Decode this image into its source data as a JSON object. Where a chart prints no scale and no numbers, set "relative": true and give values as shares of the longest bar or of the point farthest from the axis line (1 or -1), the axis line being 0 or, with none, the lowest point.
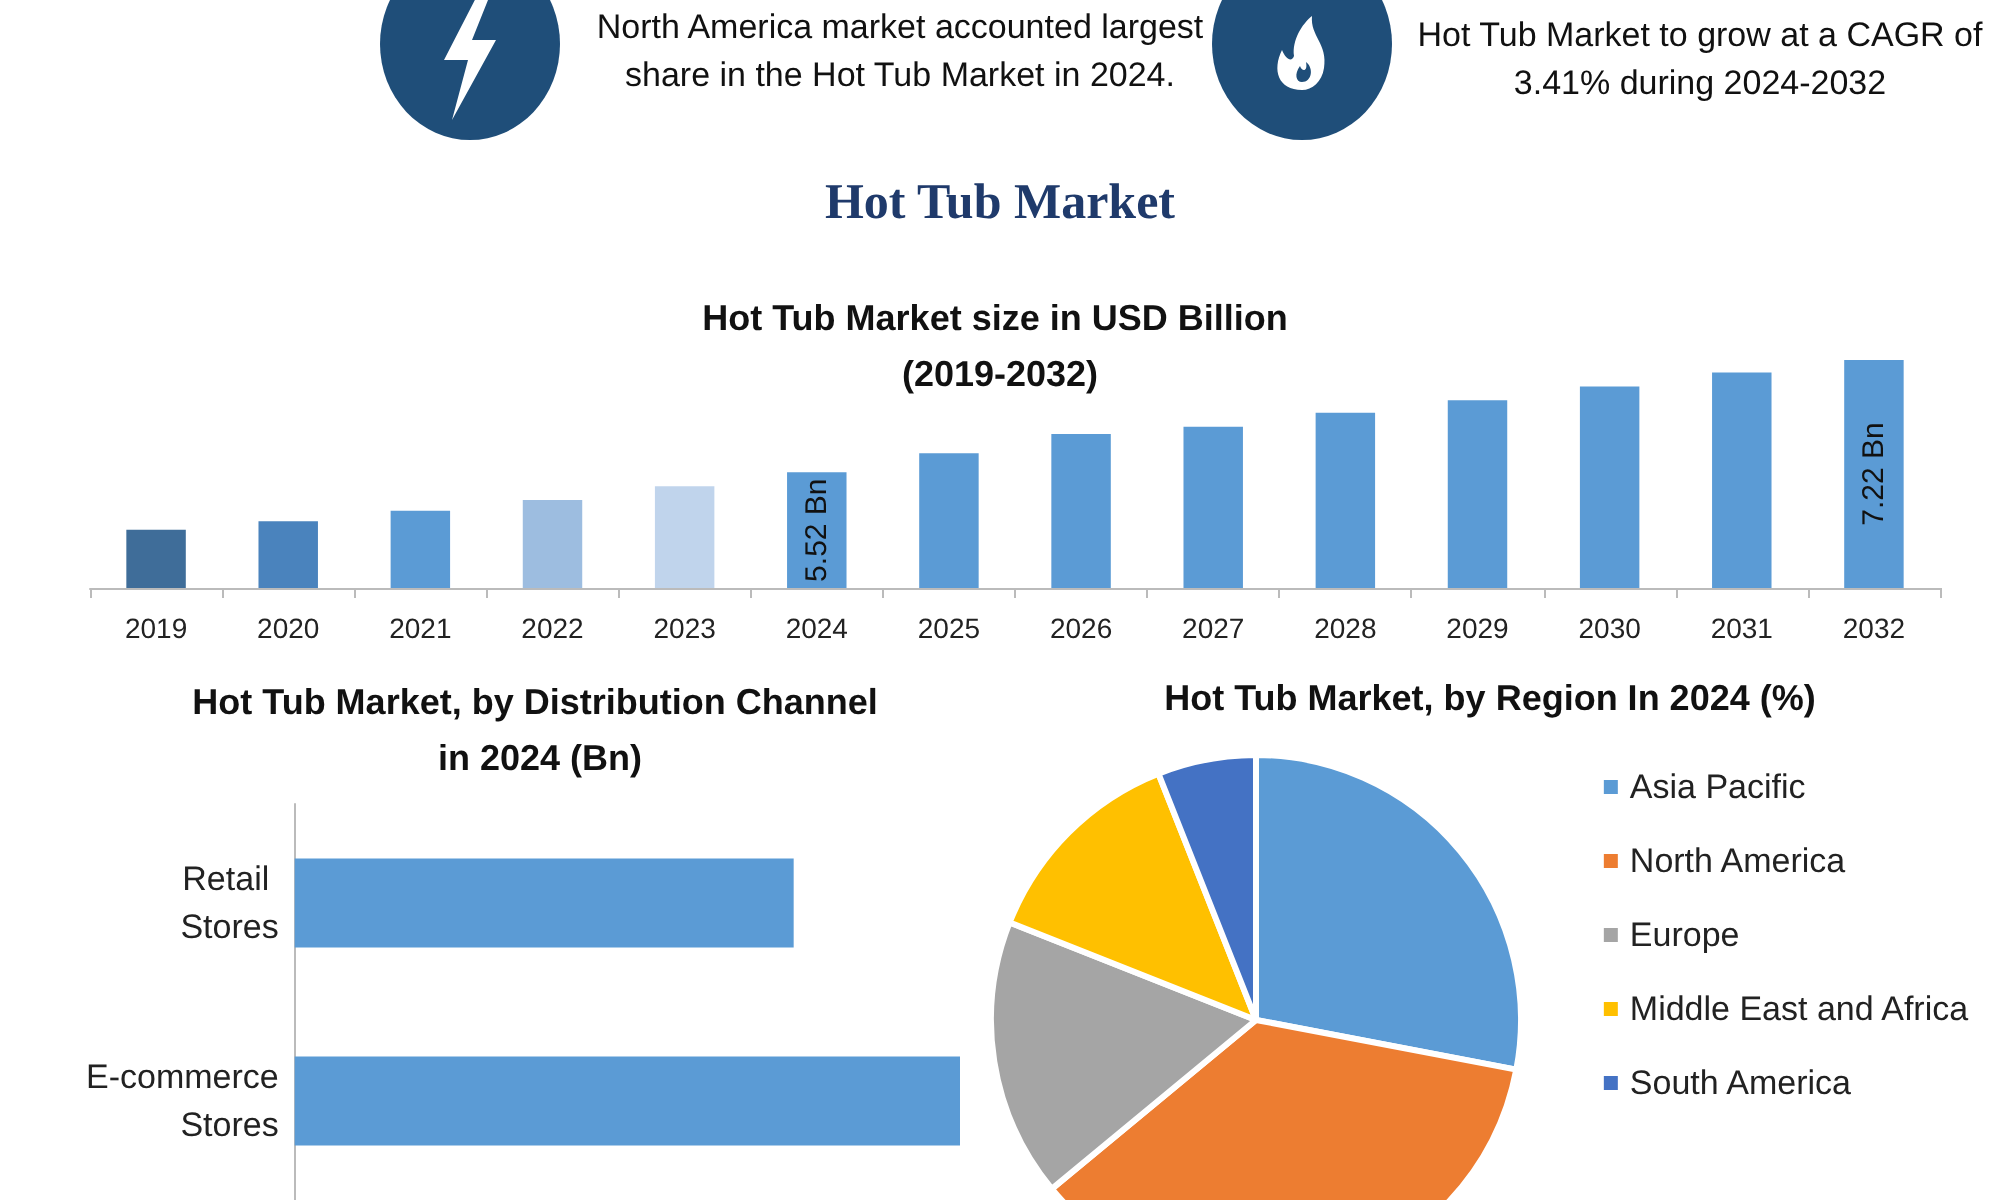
{
  "chart_data": [
    {
      "type": "other",
      "title": "Hot Tub Market",
      "annotations": [
        "North America market accounted largest share in the Hot Tub Market in 2024.",
        "Hot Tub Market to grow at a CAGR of 3.41% during 2024-2032"
      ]
    },
    {
      "type": "bar",
      "title": "Hot Tub Market size in USD Billion (2019-2032)",
      "ylim": [
        3.77,
        7.22
      ],
      "tick_labels": "x",
      "categories": [
        "2019",
        "2020",
        "2021",
        "2022",
        "2023",
        "2024",
        "2025",
        "2026",
        "2027",
        "2028",
        "2029",
        "2030",
        "2031",
        "2032"
      ],
      "values": [
        4.65,
        4.78,
        4.94,
        5.1,
        5.31,
        5.52,
        5.81,
        6.1,
        6.21,
        6.42,
        6.61,
        6.82,
        7.03,
        7.22
      ],
      "colors": [
        "#3f6d99",
        "#4a83bd",
        "#5b9bd5",
        "#9dbde0",
        "#c0d4ec",
        "#5b9bd5",
        "#5b9bd5",
        "#5b9bd5",
        "#5b9bd5",
        "#5b9bd5",
        "#5b9bd5",
        "#5b9bd5",
        "#5b9bd5",
        "#5b9bd5"
      ],
      "value_labels": [
        null,
        null,
        null,
        null,
        null,
        "5.52 Bn",
        null,
        null,
        null,
        null,
        null,
        null,
        null,
        "7.22 Bn"
      ]
    },
    {
      "type": "bar",
      "orientation": "horizontal",
      "title": "Hot Tub Market, by Distribution Channel in 2024 (Bn)",
      "relative": true,
      "categories": [
        "Retail Stores",
        "E-commerce Stores"
      ],
      "values": [
        0.75,
        1
      ],
      "color": "#5b9bd5"
    },
    {
      "type": "pie",
      "title": "Hot Tub Market, by Region In 2024 (%)",
      "categories": [
        "Asia Pacific",
        "North America",
        "Europe",
        "Middle East and Africa",
        "South America"
      ],
      "values": [
        28,
        36,
        17,
        13,
        6
      ],
      "colors": [
        "#5b9bd5",
        "#ed7d31",
        "#a5a5a5",
        "#ffc000",
        "#4472c4"
      ],
      "legend": "right"
    }
  ]
}
